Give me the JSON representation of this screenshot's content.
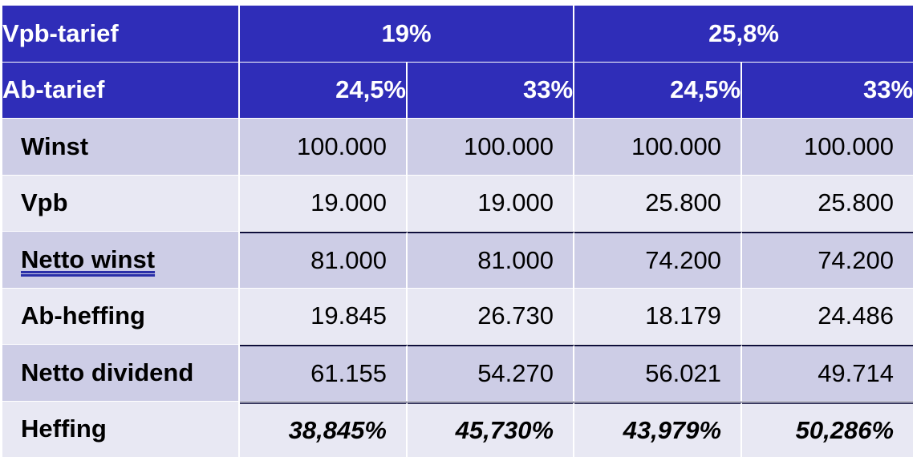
{
  "header": {
    "vpb_label": "Vpb-tarief",
    "vpb_groups": [
      "19%",
      "25,8%"
    ],
    "ab_label": "Ab-tarief",
    "ab_rates": [
      "24,5%",
      "33%",
      "24,5%",
      "33%"
    ]
  },
  "rows": [
    {
      "label": "Winst",
      "values": [
        "100.000",
        "100.000",
        "100.000",
        "100.000"
      ]
    },
    {
      "label": "Vpb",
      "values": [
        "19.000",
        "19.000",
        "25.800",
        "25.800"
      ]
    },
    {
      "label": "Netto winst",
      "values": [
        "81.000",
        "81.000",
        "74.200",
        "74.200"
      ]
    },
    {
      "label": "Ab-heffing",
      "values": [
        "19.845",
        "26.730",
        "18.179",
        "24.486"
      ]
    },
    {
      "label": "Netto dividend",
      "values": [
        "61.155",
        "54.270",
        "56.021",
        "49.714"
      ]
    },
    {
      "label": "Heffing",
      "values": [
        "38,845%",
        "45,730%",
        "43,979%",
        "50,286%"
      ]
    }
  ],
  "colors": {
    "header_bg": "#2f2db8",
    "row_dark": "#cdcde6",
    "row_light": "#e8e8f3"
  }
}
